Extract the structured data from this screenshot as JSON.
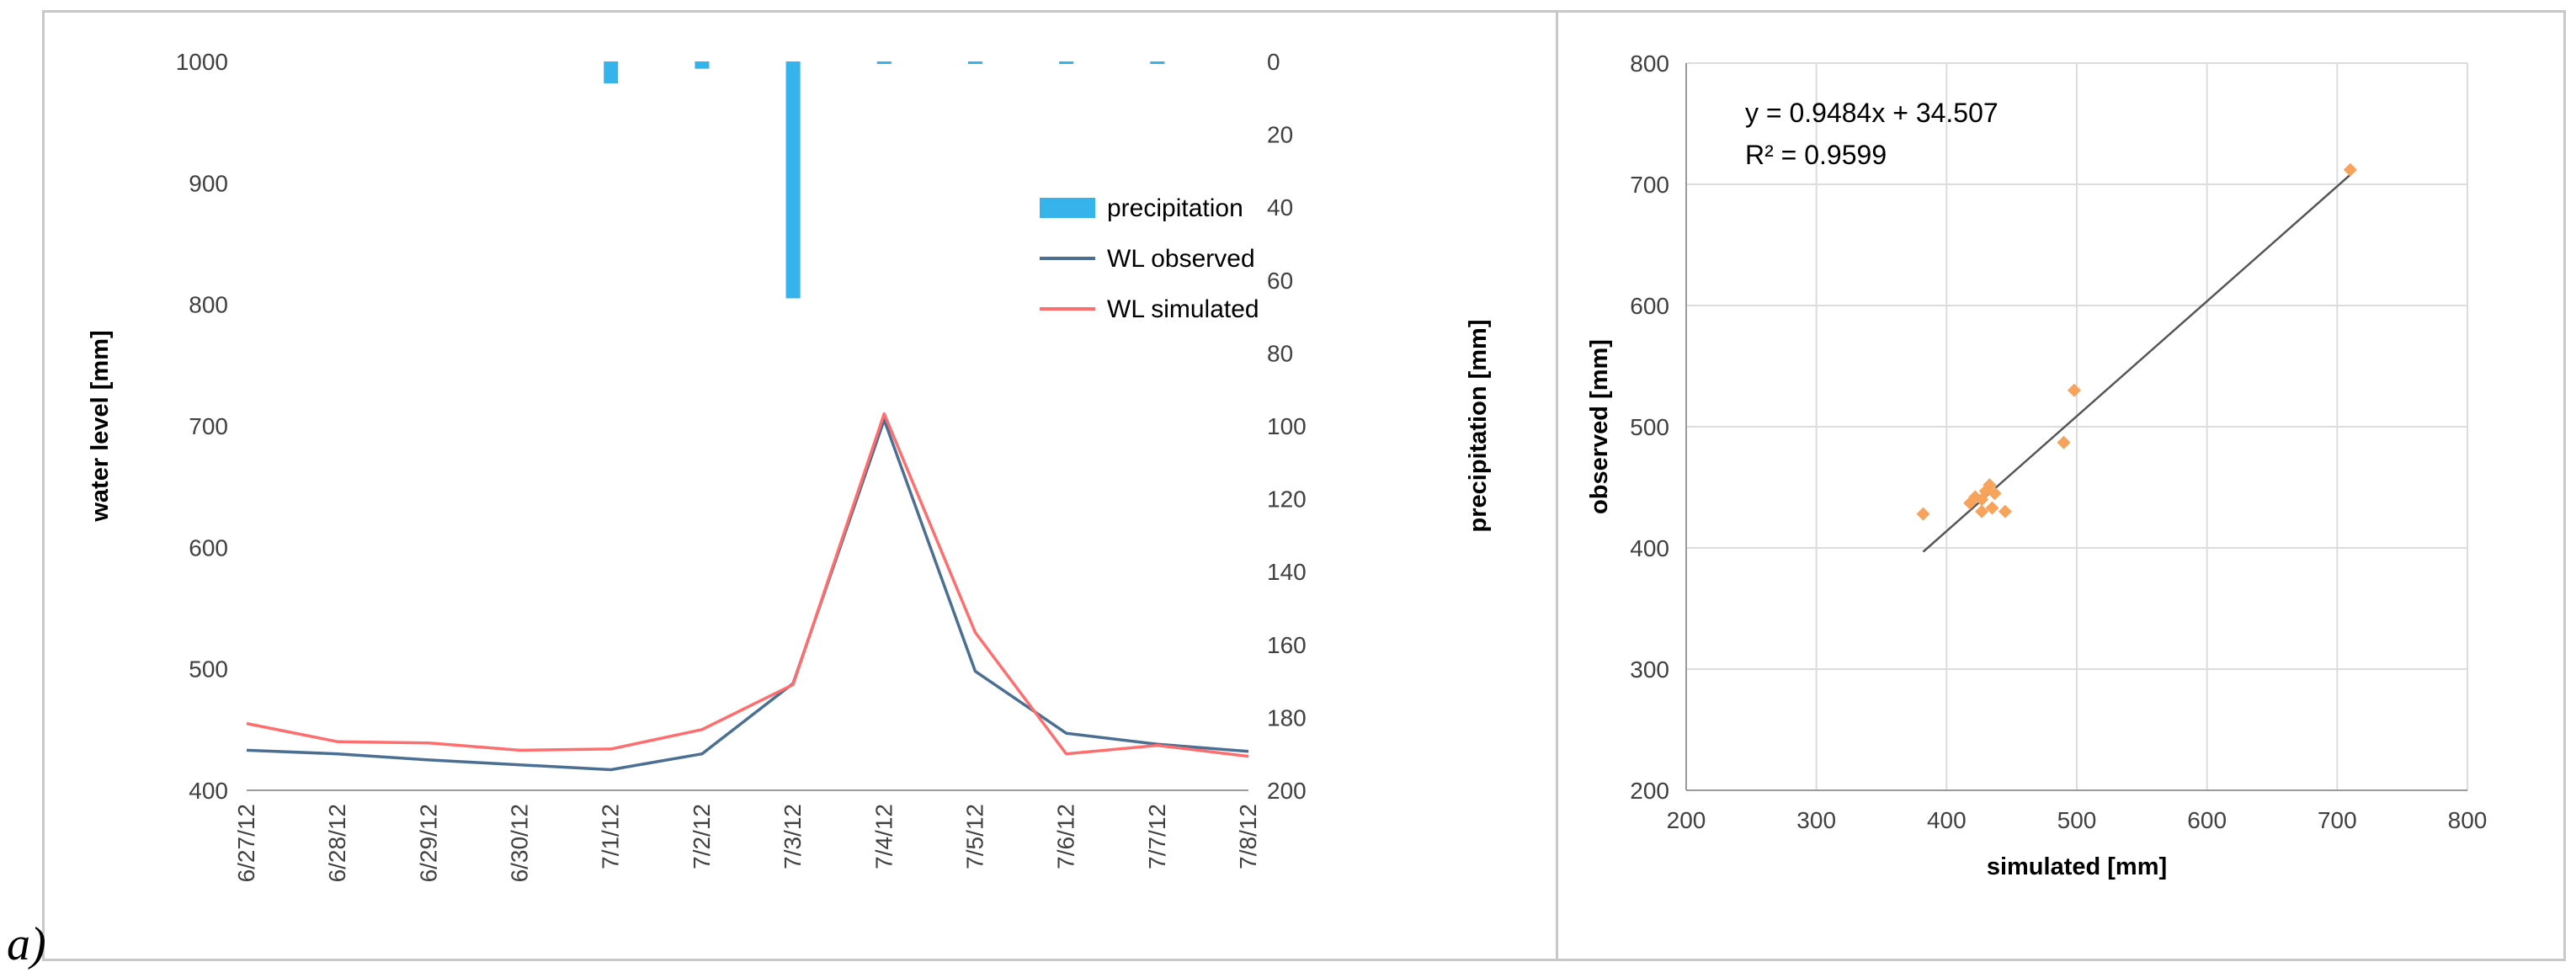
{
  "panel_label": "a)",
  "chart_data": [
    {
      "type": "line",
      "title": "",
      "xlabel": "",
      "ylabel": "water level [mm]",
      "ylim": [
        400,
        1000
      ],
      "y_ticks": [
        400,
        500,
        600,
        700,
        800,
        900,
        1000
      ],
      "categories": [
        "6/27/12",
        "6/28/12",
        "6/29/12",
        "6/30/12",
        "7/1/12",
        "7/2/12",
        "7/3/12",
        "7/4/12",
        "7/5/12",
        "7/6/12",
        "7/7/12",
        "7/8/12"
      ],
      "series": [
        {
          "name": "WL observed",
          "color": "#4a6f93",
          "values": [
            433,
            430,
            425,
            421,
            417,
            430,
            488,
            705,
            498,
            447,
            438,
            432
          ]
        },
        {
          "name": "WL simulated",
          "color": "#ff6e6e",
          "values": [
            455,
            440,
            439,
            433,
            434,
            450,
            487,
            710,
            530,
            430,
            437,
            428
          ]
        }
      ],
      "secondary_axis": {
        "label": "precipitation [mm]",
        "ylim": [
          0,
          200
        ],
        "inverted": true,
        "ticks": [
          0,
          20,
          40,
          60,
          80,
          100,
          120,
          140,
          160,
          180,
          200
        ]
      },
      "bars": {
        "name": "precipitation",
        "color": "#35b3ea",
        "x": [
          4,
          5,
          6,
          7,
          8,
          9,
          10
        ],
        "values": [
          6,
          2,
          65,
          0.6,
          0.6,
          0.3,
          0.6
        ]
      },
      "legend": {
        "position": "upper-right",
        "entries": [
          "precipitation",
          "WL observed",
          "WL simulated"
        ]
      }
    },
    {
      "type": "scatter",
      "title": "",
      "xlabel": "simulated [mm]",
      "ylabel": "observed [mm]",
      "xlim": [
        200,
        800
      ],
      "ylim": [
        200,
        800
      ],
      "x_ticks": [
        200,
        300,
        400,
        500,
        600,
        700,
        800
      ],
      "y_ticks": [
        200,
        300,
        400,
        500,
        600,
        700,
        800
      ],
      "grid": true,
      "point_color": "#f7a35c",
      "points": [
        {
          "x": 382,
          "y": 428
        },
        {
          "x": 418,
          "y": 437
        },
        {
          "x": 422,
          "y": 442
        },
        {
          "x": 427,
          "y": 440
        },
        {
          "x": 430,
          "y": 447
        },
        {
          "x": 433,
          "y": 452
        },
        {
          "x": 437,
          "y": 445
        },
        {
          "x": 427,
          "y": 430
        },
        {
          "x": 435,
          "y": 433
        },
        {
          "x": 445,
          "y": 430
        },
        {
          "x": 490,
          "y": 487
        },
        {
          "x": 498,
          "y": 530
        },
        {
          "x": 710,
          "y": 712
        }
      ],
      "trendline": {
        "slope": 0.9484,
        "intercept": 34.507,
        "x_range": [
          382,
          710
        ],
        "color": "#555555"
      },
      "equation_text": "y = 0.9484x + 34.507",
      "r2_text": "R² = 0.9599"
    }
  ]
}
